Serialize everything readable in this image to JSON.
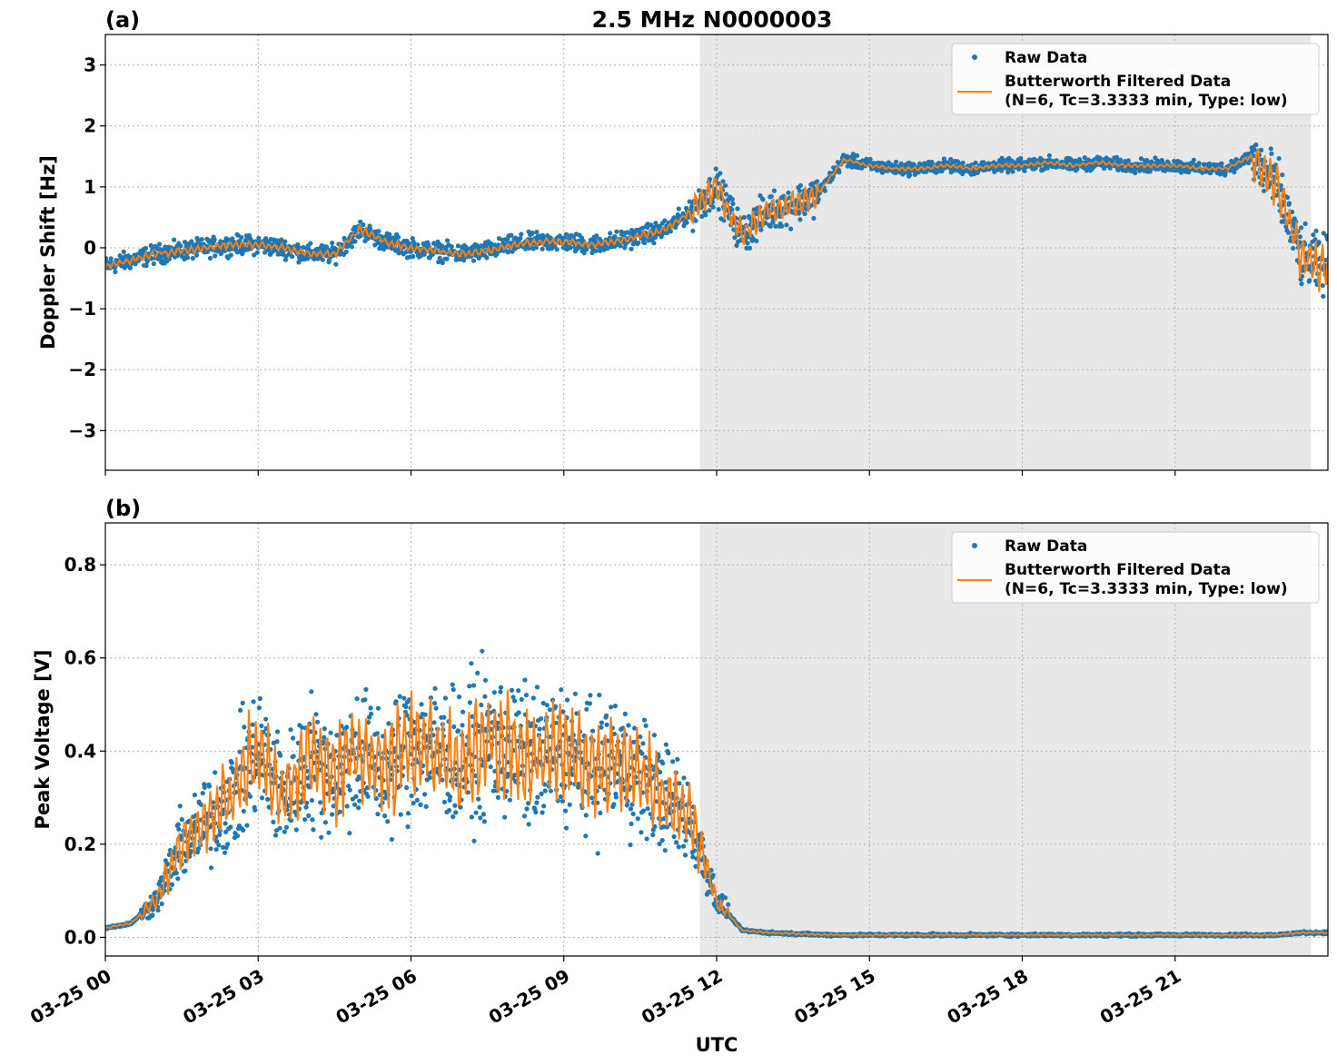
{
  "figure": {
    "title": "2.5 MHz N0000003",
    "xlabel": "UTC"
  },
  "chart_data": [
    {
      "type": "scatter",
      "panel_label": "(a)",
      "ylabel": "Doppler Shift [Hz]",
      "xlim": [
        0,
        24
      ],
      "ylim": [
        -3.65,
        3.5
      ],
      "yticks": [
        -3,
        -2,
        -1,
        0,
        1,
        2,
        3
      ],
      "ytick_labels": [
        "−3",
        "−2",
        "−1",
        "0",
        "1",
        "2",
        "3"
      ],
      "grid": true,
      "legend_position": "upper right",
      "shaded_interval_hours": [
        11.67,
        23.67
      ],
      "series": [
        {
          "name": "Raw Data",
          "kind": "points",
          "color": "#1f77b4",
          "x": [
            0,
            0.5,
            1,
            1.5,
            2,
            2.5,
            3,
            3.5,
            4,
            4.5,
            5,
            5.5,
            6,
            6.5,
            7,
            7.5,
            8,
            8.5,
            9,
            9.5,
            10,
            10.5,
            11,
            11.5,
            12,
            12.5,
            13,
            13.5,
            14,
            14.5,
            15,
            15.5,
            16,
            16.5,
            17,
            17.5,
            18,
            18.5,
            19,
            19.5,
            20,
            20.5,
            21,
            21.5,
            22,
            22.5,
            23,
            23.5,
            24
          ],
          "y": [
            -0.3,
            -0.2,
            -0.1,
            -0.05,
            0.0,
            0.05,
            0.05,
            0.0,
            -0.1,
            -0.1,
            0.3,
            0.1,
            0.0,
            -0.05,
            -0.1,
            -0.05,
            0.05,
            0.1,
            0.1,
            0.05,
            0.1,
            0.2,
            0.3,
            0.6,
            1.0,
            0.2,
            0.6,
            0.7,
            0.9,
            1.45,
            1.35,
            1.3,
            1.3,
            1.35,
            1.3,
            1.35,
            1.35,
            1.4,
            1.35,
            1.4,
            1.35,
            1.35,
            1.35,
            1.3,
            1.3,
            1.5,
            1.0,
            -0.2,
            -0.3
          ]
        },
        {
          "name": "Butterworth Filtered Data\n(N=6, Tc=3.3333 min, Type: low)",
          "kind": "line",
          "color": "#ff7f0e",
          "x": [
            0,
            0.5,
            1,
            1.5,
            2,
            2.5,
            3,
            3.5,
            4,
            4.5,
            5,
            5.5,
            6,
            6.5,
            7,
            7.5,
            8,
            8.5,
            9,
            9.5,
            10,
            10.5,
            11,
            11.5,
            12,
            12.5,
            13,
            13.5,
            14,
            14.5,
            15,
            15.5,
            16,
            16.5,
            17,
            17.5,
            18,
            18.5,
            19,
            19.5,
            20,
            20.5,
            21,
            21.5,
            22,
            22.5,
            23,
            23.5,
            24
          ],
          "y": [
            -0.3,
            -0.2,
            -0.1,
            -0.05,
            0.0,
            0.05,
            0.05,
            0.0,
            -0.1,
            -0.1,
            0.3,
            0.1,
            0.0,
            -0.05,
            -0.1,
            -0.05,
            0.05,
            0.1,
            0.1,
            0.05,
            0.1,
            0.2,
            0.3,
            0.6,
            1.0,
            0.2,
            0.6,
            0.7,
            0.9,
            1.45,
            1.35,
            1.3,
            1.3,
            1.35,
            1.3,
            1.35,
            1.35,
            1.4,
            1.35,
            1.4,
            1.35,
            1.35,
            1.35,
            1.3,
            1.3,
            1.5,
            1.0,
            -0.2,
            -0.3
          ]
        }
      ]
    },
    {
      "type": "scatter",
      "panel_label": "(b)",
      "ylabel": "Peak Voltage [V]",
      "xlim": [
        0,
        24
      ],
      "ylim": [
        -0.04,
        0.89
      ],
      "yticks": [
        0.0,
        0.2,
        0.4,
        0.6,
        0.8
      ],
      "ytick_labels": [
        "0.0",
        "0.2",
        "0.4",
        "0.6",
        "0.8"
      ],
      "grid": true,
      "legend_position": "upper right",
      "shaded_interval_hours": [
        11.67,
        23.67
      ],
      "series": [
        {
          "name": "Raw Data",
          "kind": "points",
          "color": "#1f77b4",
          "x": [
            0,
            0.5,
            1,
            1.5,
            2,
            2.5,
            3,
            3.5,
            4,
            4.5,
            5,
            5.5,
            6,
            6.5,
            7,
            7.5,
            8,
            8.5,
            9,
            9.5,
            10,
            10.5,
            11,
            11.5,
            12,
            12.5,
            13,
            13.5,
            14,
            14.5,
            15,
            15.5,
            16,
            16.5,
            17,
            17.5,
            18,
            18.5,
            19,
            19.5,
            20,
            20.5,
            21,
            21.5,
            22,
            22.5,
            23,
            23.5,
            24
          ],
          "y": [
            0.02,
            0.03,
            0.08,
            0.2,
            0.25,
            0.3,
            0.4,
            0.3,
            0.38,
            0.35,
            0.4,
            0.35,
            0.42,
            0.4,
            0.38,
            0.42,
            0.4,
            0.38,
            0.4,
            0.36,
            0.38,
            0.35,
            0.3,
            0.25,
            0.08,
            0.015,
            0.01,
            0.008,
            0.006,
            0.005,
            0.005,
            0.005,
            0.005,
            0.005,
            0.005,
            0.005,
            0.005,
            0.005,
            0.005,
            0.005,
            0.005,
            0.005,
            0.005,
            0.005,
            0.005,
            0.005,
            0.005,
            0.01,
            0.01
          ]
        },
        {
          "name": "Butterworth Filtered Data\n(N=6, Tc=3.3333 min, Type: low)",
          "kind": "line",
          "color": "#ff7f0e",
          "x": [
            0,
            0.5,
            1,
            1.5,
            2,
            2.5,
            3,
            3.5,
            4,
            4.5,
            5,
            5.5,
            6,
            6.5,
            7,
            7.5,
            8,
            8.5,
            9,
            9.5,
            10,
            10.5,
            11,
            11.5,
            12,
            12.5,
            13,
            13.5,
            14,
            14.5,
            15,
            15.5,
            16,
            16.5,
            17,
            17.5,
            18,
            18.5,
            19,
            19.5,
            20,
            20.5,
            21,
            21.5,
            22,
            22.5,
            23,
            23.5,
            24
          ],
          "y": [
            0.02,
            0.03,
            0.08,
            0.2,
            0.25,
            0.3,
            0.4,
            0.3,
            0.38,
            0.35,
            0.4,
            0.35,
            0.42,
            0.4,
            0.38,
            0.42,
            0.4,
            0.38,
            0.4,
            0.36,
            0.38,
            0.35,
            0.3,
            0.25,
            0.08,
            0.015,
            0.01,
            0.008,
            0.006,
            0.005,
            0.005,
            0.005,
            0.005,
            0.005,
            0.005,
            0.005,
            0.005,
            0.005,
            0.005,
            0.005,
            0.005,
            0.005,
            0.005,
            0.005,
            0.005,
            0.005,
            0.005,
            0.01,
            0.01
          ]
        }
      ]
    }
  ],
  "xticks": [
    0,
    3,
    6,
    9,
    12,
    15,
    18,
    21
  ],
  "xtick_labels": [
    "03-25 00",
    "03-25 03",
    "03-25 06",
    "03-25 09",
    "03-25 12",
    "03-25 15",
    "03-25 18",
    "03-25 21"
  ],
  "legend": {
    "raw_label": "Raw Data",
    "filtered_line1": "Butterworth Filtered Data",
    "filtered_line2": "(N=6, Tc=3.3333 min, Type: low)"
  },
  "colors": {
    "raw": "#1f77b4",
    "filtered": "#ff7f0e",
    "shade": "#e8e8e8",
    "grid": "#b0b0b0"
  }
}
